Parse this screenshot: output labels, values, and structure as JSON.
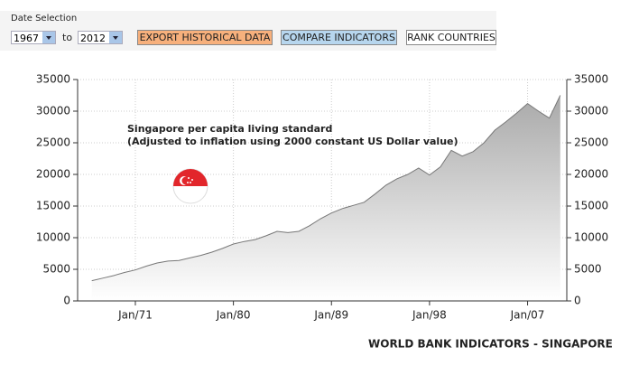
{
  "controls": {
    "date_label": "Date Selection",
    "from": "1967",
    "to_label": "to",
    "to": "2012",
    "buttons": [
      "EXPORT HISTORICAL DATA",
      "COMPARE INDICATORS",
      "RANK COUNTRIES"
    ]
  },
  "chart_data": {
    "type": "area",
    "annotation": [
      "Singapore per capita living standard",
      "(Adjusted to inflation using 2000 constant US Dollar value)"
    ],
    "source": "WORLD BANK INDICATORS - SINGAPORE",
    "x": [
      1967,
      1968,
      1969,
      1970,
      1971,
      1972,
      1973,
      1974,
      1975,
      1976,
      1977,
      1978,
      1979,
      1980,
      1981,
      1982,
      1983,
      1984,
      1985,
      1986,
      1987,
      1988,
      1989,
      1990,
      1991,
      1992,
      1993,
      1994,
      1995,
      1996,
      1997,
      1998,
      1999,
      2000,
      2001,
      2002,
      2003,
      2004,
      2005,
      2006,
      2007,
      2008,
      2009,
      2010
    ],
    "values": [
      3200,
      3600,
      4000,
      4500,
      4900,
      5500,
      6000,
      6300,
      6400,
      6800,
      7200,
      7700,
      8300,
      9000,
      9400,
      9700,
      10300,
      11000,
      10800,
      11000,
      11900,
      13000,
      13900,
      14600,
      15100,
      15600,
      16900,
      18300,
      19300,
      20000,
      21000,
      19900,
      21200,
      23800,
      22900,
      23600,
      25000,
      27000,
      28300,
      29700,
      31200,
      30000,
      28900,
      32500
    ],
    "color": "#777777",
    "fill_top": "#a9a9a9",
    "xlim": [
      1965.7,
      2010.6
    ],
    "ylim": [
      0,
      35000
    ],
    "yticks": [
      0,
      5000,
      10000,
      15000,
      20000,
      25000,
      30000,
      35000
    ],
    "xticks": [
      {
        "value": 1971,
        "label": "Jan/71"
      },
      {
        "value": 1980,
        "label": "Jan/80"
      },
      {
        "value": 1989,
        "label": "Jan/89"
      },
      {
        "value": 1998,
        "label": "Jan/98"
      },
      {
        "value": 2007,
        "label": "Jan/07"
      }
    ],
    "grid": true,
    "right_axis": true
  }
}
